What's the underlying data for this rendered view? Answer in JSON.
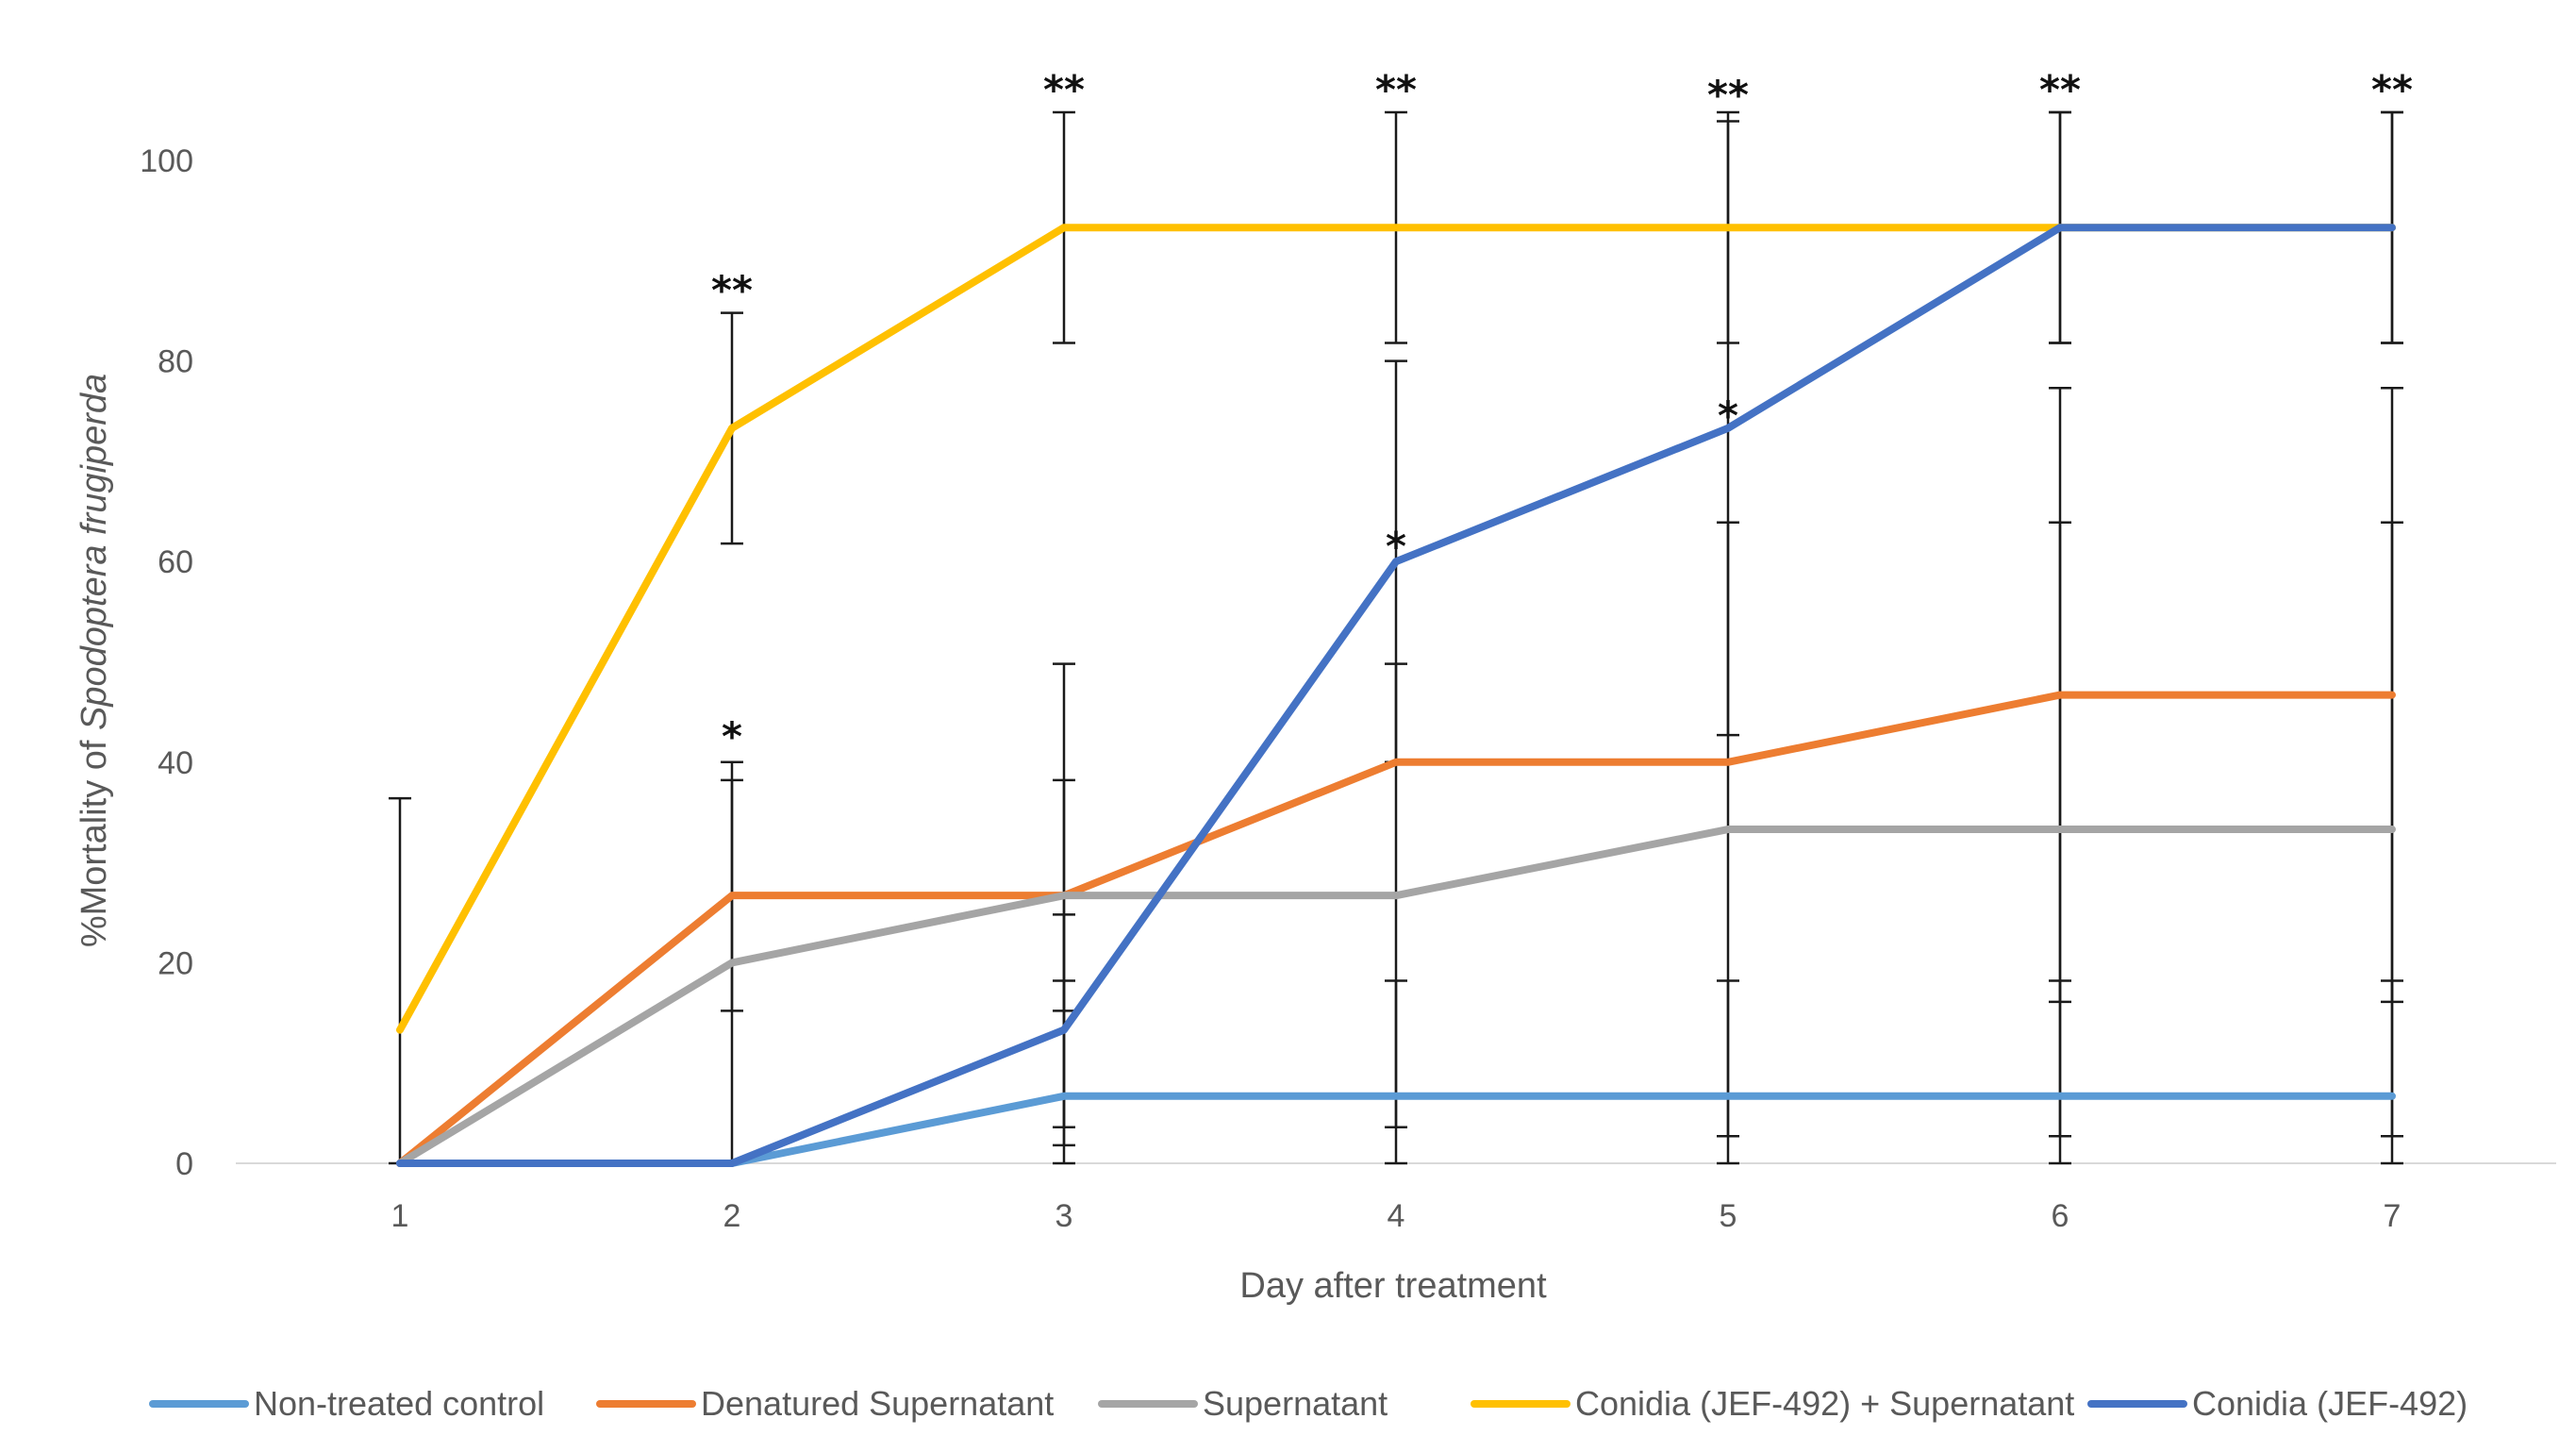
{
  "chart_data": {
    "type": "line",
    "xlabel": "Day after treatment",
    "ylabel_prefix": "%Mortality of ",
    "ylabel_species": "Spodoptera frugiperda",
    "x": [
      1,
      2,
      3,
      4,
      5,
      6,
      7
    ],
    "x_tick_labels": [
      "1",
      "2",
      "3",
      "4",
      "5",
      "6",
      "7"
    ],
    "ylim": [
      0,
      100
    ],
    "y_ticks": [
      0,
      20,
      40,
      60,
      80,
      100
    ],
    "y_tick_labels": [
      "0",
      "20",
      "40",
      "60",
      "80",
      "100"
    ],
    "grid": false,
    "legend_position": "bottom",
    "series": [
      {
        "name": "Non-treated control",
        "color": "#5b9bd5",
        "values": [
          0,
          0,
          6.7,
          6.7,
          6.7,
          6.7,
          6.7
        ],
        "error": [
          0,
          0,
          11.5,
          11.5,
          11.5,
          11.5,
          11.5
        ]
      },
      {
        "name": "Denatured Supernatant",
        "color": "#ed7d31",
        "values": [
          0,
          26.7,
          26.7,
          40,
          40,
          46.7,
          46.7
        ],
        "error": [
          0,
          11.5,
          11.5,
          0,
          0,
          30.6,
          30.6
        ]
      },
      {
        "name": "Supernatant",
        "color": "#a5a5a5",
        "values": [
          0,
          20,
          26.7,
          26.7,
          33.3,
          33.3,
          33.3
        ],
        "error": [
          0,
          20,
          23.1,
          23.1,
          30.6,
          30.6,
          30.6
        ]
      },
      {
        "name": "Conidia (JEF-492) + Supernatant",
        "color": "#ffc000",
        "values": [
          13.3,
          73.3,
          93.3,
          93.3,
          93.3,
          93.3,
          93.3
        ],
        "error": [
          23.1,
          11.5,
          11.5,
          11.5,
          11.5,
          11.5,
          11.5
        ]
      },
      {
        "name": "Conidia (JEF-492)",
        "color": "#4472c4",
        "values": [
          0,
          0,
          13.3,
          60,
          73.3,
          93.3,
          93.3
        ],
        "error": [
          0,
          0,
          11.5,
          20,
          30.6,
          11.5,
          11.5
        ]
      }
    ],
    "annotations": [
      {
        "x": 2,
        "text": "**",
        "y": 87
      },
      {
        "x": 2,
        "text": "*",
        "y": 42.5
      },
      {
        "x": 3,
        "text": "**",
        "y": 107
      },
      {
        "x": 4,
        "text": "**",
        "y": 107
      },
      {
        "x": 4,
        "text": "*",
        "y": 61.5
      },
      {
        "x": 5,
        "text": "**",
        "y": 106.5
      },
      {
        "x": 5,
        "text": "*",
        "y": 74.5
      },
      {
        "x": 6,
        "text": "**",
        "y": 107
      },
      {
        "x": 7,
        "text": "**",
        "y": 107
      }
    ]
  }
}
